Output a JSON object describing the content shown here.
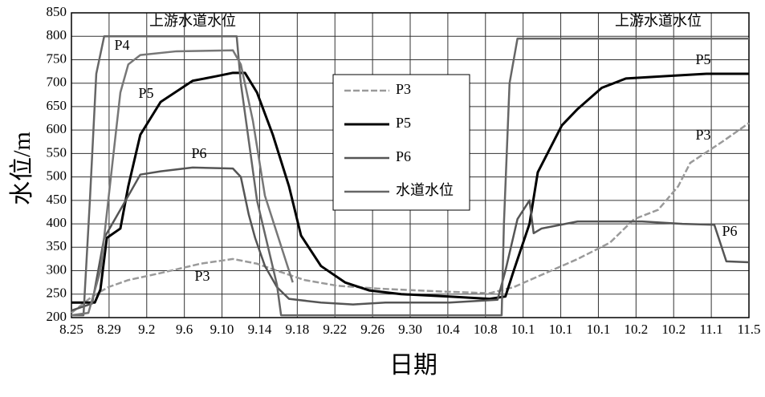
{
  "chart_data": {
    "type": "line",
    "xlabel": "日期",
    "ylabel": "水位/m",
    "annotation": "上游水道水位",
    "xlim": [
      0,
      18
    ],
    "xticks": [
      {
        "value": 0,
        "label": "8.25"
      },
      {
        "value": 1,
        "label": "8.29"
      },
      {
        "value": 2,
        "label": "9.2"
      },
      {
        "value": 3,
        "label": "9.6"
      },
      {
        "value": 4,
        "label": "9.10"
      },
      {
        "value": 5,
        "label": "9.14"
      },
      {
        "value": 6,
        "label": "9.18"
      },
      {
        "value": 7,
        "label": "9.22"
      },
      {
        "value": 8,
        "label": "9.26"
      },
      {
        "value": 9,
        "label": "9.30"
      },
      {
        "value": 10,
        "label": "10.4"
      },
      {
        "value": 11,
        "label": "10.8"
      },
      {
        "value": 12,
        "label": "10.1"
      },
      {
        "value": 13,
        "label": "10.1"
      },
      {
        "value": 14,
        "label": "10.1"
      },
      {
        "value": 15,
        "label": "10.2"
      },
      {
        "value": 16,
        "label": "10.2"
      },
      {
        "value": 17,
        "label": "11.1"
      },
      {
        "value": 18,
        "label": "11.5"
      }
    ],
    "ylim": [
      200,
      850
    ],
    "yticks": [
      200,
      250,
      300,
      350,
      400,
      450,
      500,
      550,
      600,
      650,
      700,
      750,
      800,
      850
    ],
    "grid": true,
    "series": [
      {
        "name": "P3",
        "color": "#9a9a9a",
        "dashed": true,
        "x": [
          0,
          0.55,
          0.98,
          1.51,
          2.37,
          3.43,
          4.29,
          4.93,
          5.46,
          6.2,
          7.06,
          8.12,
          9.19,
          10.04,
          11.11,
          11.75,
          12.6,
          13.45,
          14.31,
          14.95,
          15.59,
          16.12,
          16.44,
          17.29,
          18
        ],
        "values": [
          210,
          245,
          265,
          280,
          295,
          315,
          325,
          315,
          300,
          280,
          268,
          262,
          258,
          255,
          252,
          265,
          295,
          325,
          360,
          410,
          430,
          480,
          530,
          575,
          615
        ]
      },
      {
        "name": "P5",
        "color": "#000000",
        "width": 3,
        "x": [
          0,
          0.62,
          0.77,
          0.94,
          1.3,
          1.51,
          1.83,
          2.37,
          3.22,
          3.86,
          4.29,
          4.61,
          4.93,
          5.35,
          5.78,
          6.1,
          6.63,
          7.27,
          7.91,
          8.76,
          10.04,
          11.11,
          11.53,
          11.75,
          12.17,
          12.39,
          13.03,
          13.45,
          14.09,
          14.73,
          15.8,
          16.87,
          18
        ],
        "values": [
          232,
          232,
          260,
          370,
          390,
          480,
          590,
          660,
          705,
          715,
          722,
          722,
          680,
          590,
          480,
          375,
          310,
          275,
          258,
          250,
          245,
          240,
          245,
          300,
          400,
          510,
          610,
          645,
          690,
          710,
          715,
          720,
          720
        ]
      },
      {
        "name": "P6",
        "color": "#555555",
        "x": [
          0,
          0.55,
          0.87,
          1.3,
          1.83,
          2.37,
          3.22,
          4.29,
          4.5,
          4.71,
          4.88,
          5.14,
          5.46,
          5.78,
          6.63,
          7.48,
          8.34,
          10.04,
          11.32,
          11.53,
          11.85,
          12.17,
          12.28,
          12.49,
          12.81,
          13.45,
          15.16,
          16.23,
          17.08,
          17.4,
          18
        ],
        "values": [
          215,
          230,
          370,
          430,
          505,
          512,
          520,
          518,
          500,
          420,
          370,
          310,
          265,
          240,
          232,
          228,
          232,
          232,
          238,
          300,
          410,
          450,
          380,
          390,
          395,
          405,
          405,
          400,
          398,
          320,
          318
        ]
      },
      {
        "name": "水道水位",
        "color": "#666666",
        "x": [
          0,
          0.32,
          0.49,
          0.66,
          0.87,
          4.39,
          4.5,
          4.93,
          5.46,
          5.57,
          11.43,
          11.49,
          11.64,
          11.85,
          18
        ],
        "values": [
          205,
          205,
          450,
          720,
          800,
          800,
          700,
          450,
          270,
          205,
          205,
          400,
          700,
          795,
          795
        ]
      },
      {
        "name": "P4",
        "color": "#777777",
        "legend": false,
        "x": [
          0,
          0.45,
          0.77,
          1.09,
          1.3,
          1.51,
          1.83,
          2.79,
          4.29,
          4.5,
          4.82,
          5.14,
          5.46,
          5.78,
          5.88
        ],
        "values": [
          205,
          210,
          300,
          530,
          680,
          740,
          760,
          768,
          770,
          740,
          620,
          460,
          380,
          300,
          275
        ]
      }
    ]
  }
}
